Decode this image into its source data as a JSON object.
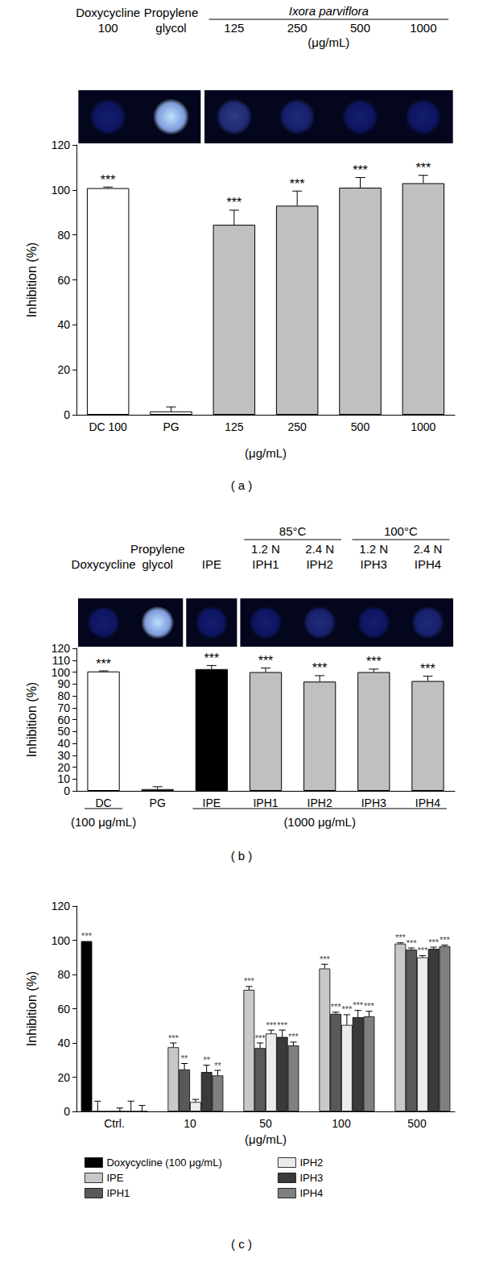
{
  "chart_data": [
    {
      "type": "bar",
      "title": "( a )",
      "y_label": "Inhibition (%)",
      "x_label": "(μg/mL)",
      "categories": [
        "DC 100",
        "PG",
        "125",
        "250",
        "500",
        "1000"
      ],
      "values": [
        100.8,
        1.5,
        84.5,
        93,
        101,
        103
      ],
      "errors": [
        0.5,
        2,
        6.5,
        6.5,
        4.5,
        3.5
      ],
      "significance": [
        "***",
        null,
        "***",
        "***",
        "***",
        "***"
      ],
      "colors": [
        "#ffffff",
        "#ffffff",
        "#c0c0c0",
        "#c0c0c0",
        "#c0c0c0",
        "#c0c0c0"
      ],
      "ylim": [
        0,
        120
      ],
      "yticks": [
        0,
        20,
        40,
        60,
        80,
        100,
        120
      ],
      "grid": false,
      "header": [
        [
          "Doxycycline",
          "100"
        ],
        [
          "Propylene",
          "glycol"
        ],
        [
          "125"
        ],
        [
          "250"
        ],
        [
          "500"
        ],
        [
          "1000"
        ]
      ],
      "header_groups": [
        {
          "text": "Ixora parviflora",
          "categories": [
            "125",
            "250",
            "500",
            "1000"
          ],
          "unit": "(μg/mL)"
        }
      ],
      "spot_panels": [
        [
          "DC 100",
          "PG"
        ],
        [
          "125",
          "250",
          "500",
          "1000"
        ]
      ]
    },
    {
      "type": "bar",
      "title": "( b )",
      "y_label": "Inhibition (%)",
      "categories": [
        "DC",
        "PG",
        "IPE",
        "IPH1",
        "IPH2",
        "IPH3",
        "IPH4"
      ],
      "values": [
        100.5,
        1.5,
        102.5,
        100,
        92,
        100,
        92.5
      ],
      "errors": [
        0.5,
        2,
        3,
        3.5,
        5,
        2.5,
        4
      ],
      "significance": [
        "***",
        null,
        "***",
        "***",
        "***",
        "***",
        "***"
      ],
      "colors": [
        "#ffffff",
        "#ffffff",
        "#000000",
        "#c0c0c0",
        "#c0c0c0",
        "#c0c0c0",
        "#c0c0c0"
      ],
      "ylim": [
        0,
        120
      ],
      "yticks": [
        0,
        10,
        20,
        30,
        40,
        50,
        60,
        70,
        80,
        90,
        100,
        110,
        120
      ],
      "grid": false,
      "header": [
        [
          "Doxycycline"
        ],
        [
          "Propylene",
          "glycol"
        ],
        [
          "IPE"
        ],
        [
          "1.2 N",
          "IPH1"
        ],
        [
          "2.4 N",
          "IPH2"
        ],
        [
          "1.2 N",
          "IPH3"
        ],
        [
          "2.4 N",
          "IPH4"
        ]
      ],
      "header_groups": [
        {
          "text": "85°C",
          "categories": [
            "IPH1",
            "IPH2"
          ]
        },
        {
          "text": "100°C",
          "categories": [
            "IPH3",
            "IPH4"
          ]
        }
      ],
      "footer_groups": [
        {
          "text": "(100 μg/mL)",
          "categories": [
            "DC"
          ]
        },
        {
          "text": "(1000 μg/mL)",
          "categories": [
            "IPE",
            "IPH1",
            "IPH2",
            "IPH3",
            "IPH4"
          ]
        }
      ],
      "spot_panels": [
        [
          "DC",
          "PG"
        ],
        [
          "IPE"
        ],
        [
          "IPH1",
          "IPH2",
          "IPH3",
          "IPH4"
        ]
      ]
    },
    {
      "type": "bar",
      "title": "( c )",
      "y_label": "Inhibition (%)",
      "x_label": "(μg/mL)",
      "categories": [
        "Ctrl.",
        "10",
        "50",
        "100",
        "500"
      ],
      "ylim": [
        0,
        120
      ],
      "yticks": [
        0,
        20,
        40,
        60,
        80,
        100,
        120
      ],
      "grid": false,
      "legend": "bottom",
      "series": [
        {
          "name": "Doxycycline (100 μg/mL)",
          "color": "#000000",
          "values": [
            99.5,
            null,
            null,
            null,
            null
          ],
          "errors": [
            0,
            null,
            null,
            null,
            null
          ],
          "significance": [
            "***",
            null,
            null,
            null,
            null
          ]
        },
        {
          "name": "IPE",
          "color": "#c8c8c8",
          "values": [
            0,
            37.5,
            71,
            83.5,
            98
          ],
          "errors": [
            6,
            2.5,
            2,
            2.5,
            0.5
          ],
          "significance": [
            null,
            "***",
            "***",
            "***",
            "***"
          ]
        },
        {
          "name": "IPH1",
          "color": "#595959",
          "values": [
            0,
            24.5,
            37,
            57,
            94.5
          ],
          "errors": [
            0,
            3.5,
            3,
            1,
            1
          ],
          "significance": [
            null,
            "**",
            "***",
            "***",
            "***"
          ]
        },
        {
          "name": "IPH2",
          "color": "#ebebeb",
          "values": [
            0,
            5.5,
            45.5,
            50.5,
            90
          ],
          "errors": [
            2,
            1.5,
            2,
            6,
            1
          ],
          "significance": [
            null,
            null,
            "***",
            "***",
            "***"
          ]
        },
        {
          "name": "IPH3",
          "color": "#3a3a3a",
          "values": [
            0,
            23,
            43.5,
            55,
            95
          ],
          "errors": [
            6,
            4,
            4,
            4,
            1
          ],
          "significance": [
            null,
            "**",
            "***",
            "***",
            "***"
          ]
        },
        {
          "name": "IPH4",
          "color": "#808080",
          "values": [
            0,
            21,
            38.5,
            55.5,
            96.5
          ],
          "errors": [
            3.5,
            3,
            2,
            3,
            0.7
          ],
          "significance": [
            null,
            "**",
            "***",
            "***",
            "***"
          ]
        }
      ]
    }
  ]
}
